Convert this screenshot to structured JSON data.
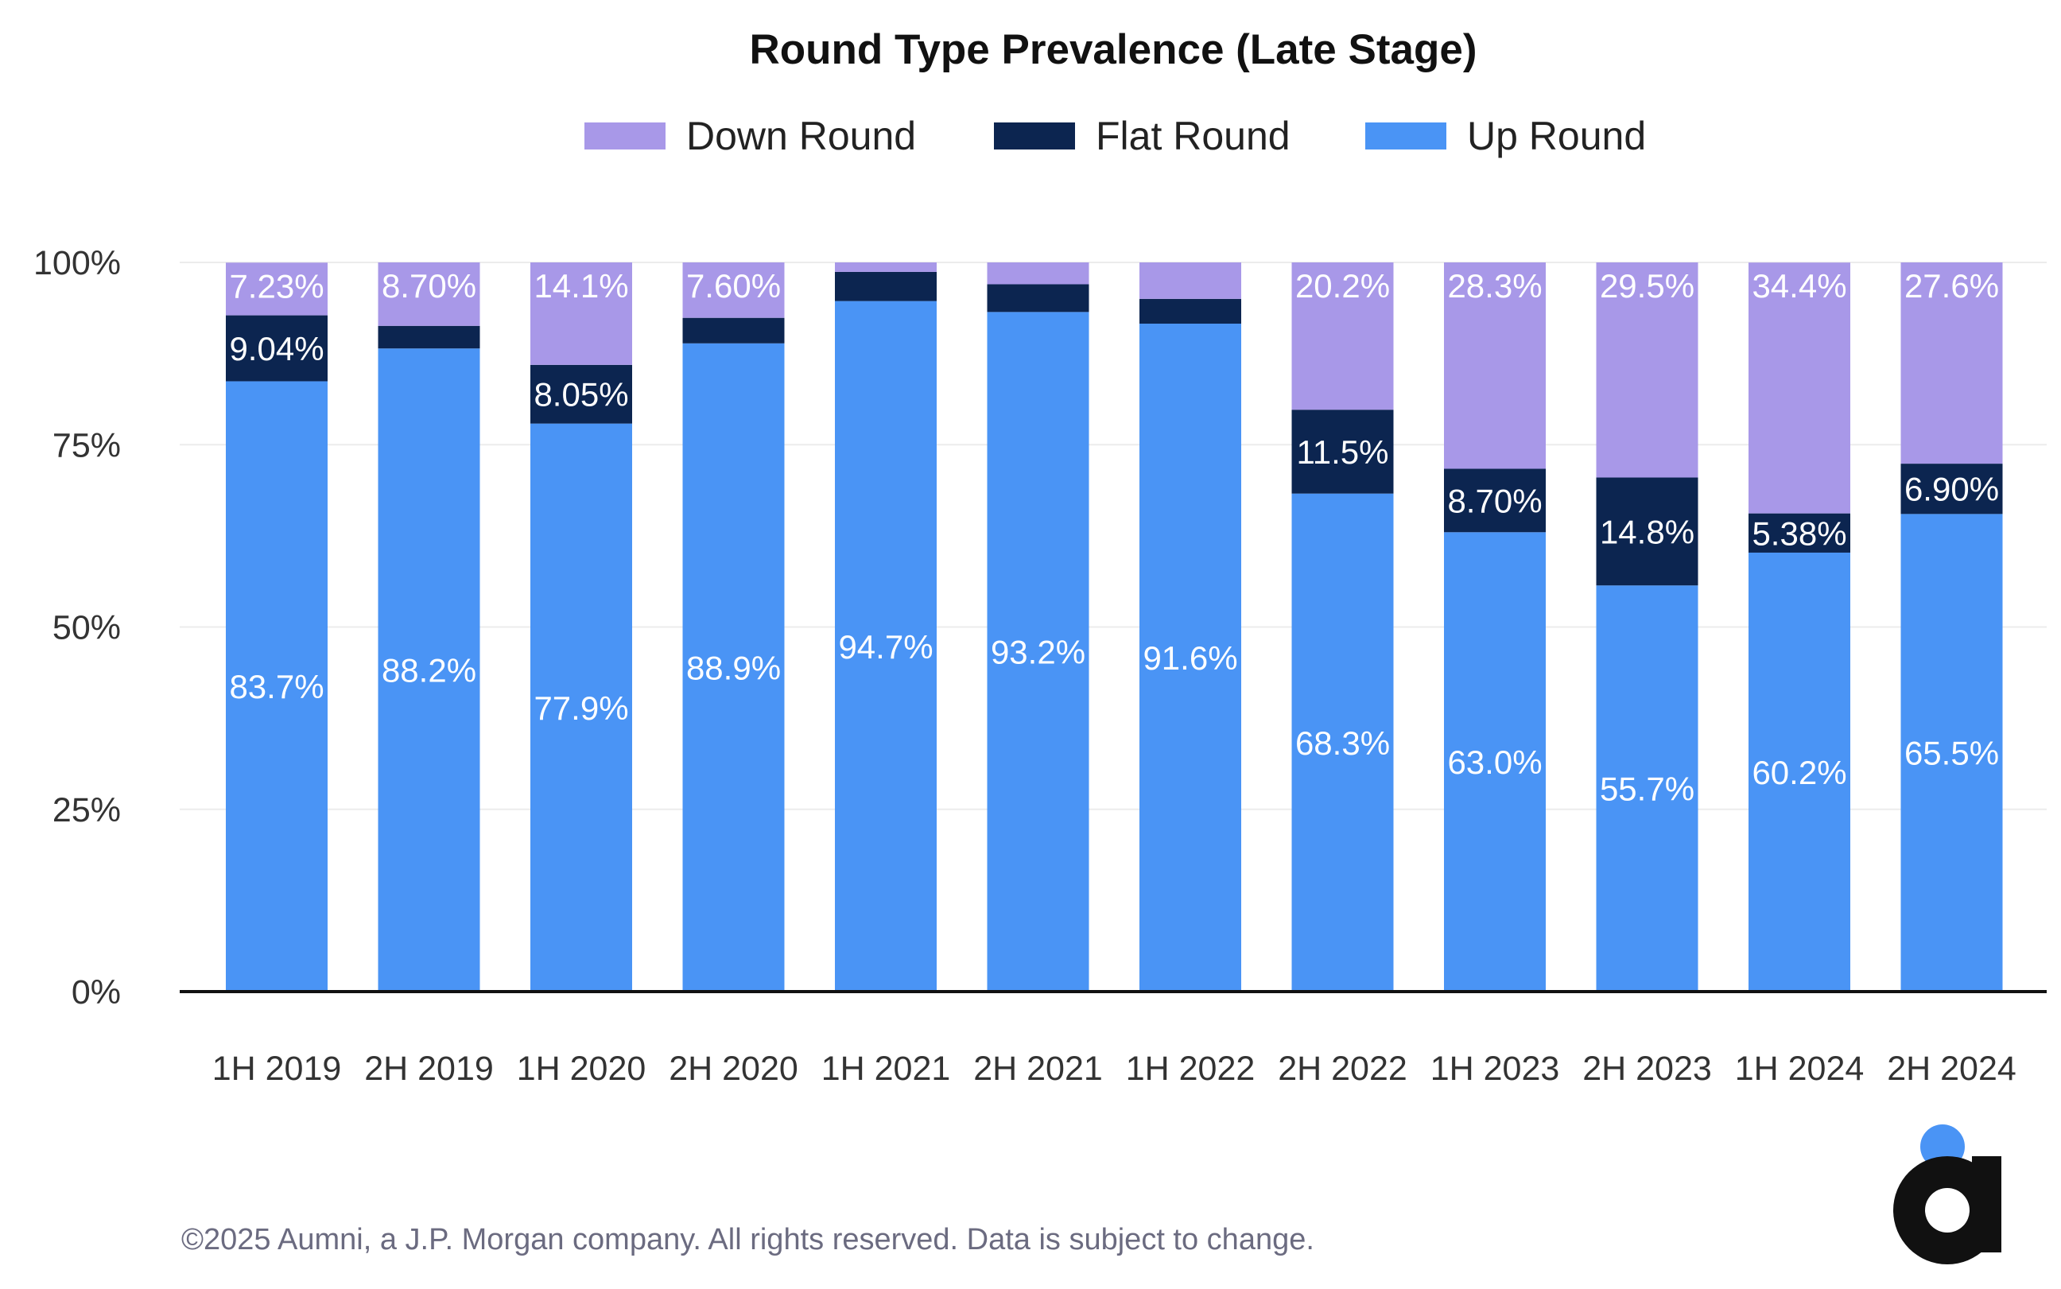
{
  "chart_data": {
    "type": "bar",
    "stacked": true,
    "title": "Round Type Prevalence (Late Stage)",
    "xlabel": "",
    "ylabel": "",
    "ylim": [
      0,
      100
    ],
    "y_ticks": [
      {
        "value": 0,
        "label": "0%"
      },
      {
        "value": 25,
        "label": "25%"
      },
      {
        "value": 50,
        "label": "50%"
      },
      {
        "value": 75,
        "label": "75%"
      },
      {
        "value": 100,
        "label": "100%"
      }
    ],
    "grid": true,
    "legend_position": "top-center",
    "categories": [
      "1H 2019",
      "2H 2019",
      "1H 2020",
      "2H 2020",
      "1H 2021",
      "2H 2021",
      "1H 2022",
      "2H 2022",
      "1H 2023",
      "2H 2023",
      "1H 2024",
      "2H 2024"
    ],
    "series": [
      {
        "name": "Up Round",
        "color": "#4a94f5",
        "values": [
          83.7,
          88.2,
          77.9,
          88.9,
          94.7,
          93.2,
          91.6,
          68.3,
          63.0,
          55.7,
          60.2,
          65.5
        ],
        "labels": [
          "83.7%",
          "88.2%",
          "77.9%",
          "88.9%",
          "94.7%",
          "93.2%",
          "91.6%",
          "68.3%",
          "63.0%",
          "55.7%",
          "60.2%",
          "65.5%"
        ]
      },
      {
        "name": "Flat Round",
        "color": "#0c2550",
        "values": [
          9.04,
          3.1,
          8.05,
          3.5,
          4.0,
          3.8,
          3.4,
          11.5,
          8.7,
          14.8,
          5.38,
          6.9
        ],
        "labels": [
          "9.04%",
          "",
          "8.05%",
          "",
          "",
          "",
          "",
          "11.5%",
          "8.70%",
          "14.8%",
          "5.38%",
          "6.90%"
        ]
      },
      {
        "name": "Down Round",
        "color": "#a898e8",
        "values": [
          7.23,
          8.7,
          14.1,
          7.6,
          1.3,
          3.0,
          5.0,
          20.2,
          28.3,
          29.5,
          34.4,
          27.6
        ],
        "labels": [
          "7.23%",
          "8.70%",
          "14.1%",
          "7.60%",
          "",
          "",
          "",
          "20.2%",
          "28.3%",
          "29.5%",
          "34.4%",
          "27.6%"
        ]
      }
    ],
    "legend": [
      {
        "name": "Down Round",
        "color": "#a898e8"
      },
      {
        "name": "Flat Round",
        "color": "#0c2550"
      },
      {
        "name": "Up Round",
        "color": "#4a94f5"
      }
    ]
  },
  "footer": {
    "copyright": "©2025 Aumni, a J.P. Morgan company. All rights reserved. Data is subject to change."
  },
  "logo": {
    "name": "aumni-logo-icon",
    "letter": "a",
    "dot_color": "#4a94f5",
    "color": "#111111"
  }
}
